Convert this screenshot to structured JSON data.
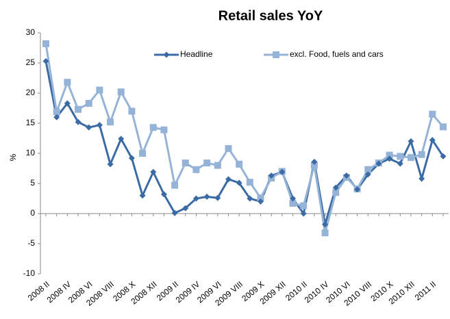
{
  "chart_data": {
    "type": "line",
    "title": "Retail sales YoY",
    "y_label": "%",
    "categories": [
      "2008 II",
      null,
      "2008 IV",
      null,
      "2008 VI",
      null,
      "2008 VIII",
      null,
      "2008 X",
      null,
      "2008 XII",
      null,
      "2009 II",
      null,
      "2009 IV",
      null,
      "2009 VI",
      null,
      "2009 VIII",
      null,
      "2009 X",
      null,
      "2009 XII",
      null,
      "2010 II",
      null,
      "2010 IV",
      null,
      "2010 VI",
      null,
      "2010 VIII",
      null,
      "2010 X",
      null,
      "2010 XII",
      null,
      "2011 II",
      null
    ],
    "series": [
      {
        "name": "Headline",
        "color": "#3b6ba5",
        "marker": "diamond",
        "values": [
          25.3,
          16.0,
          18.3,
          15.2,
          14.3,
          14.7,
          8.2,
          12.4,
          9.2,
          3.0,
          6.9,
          3.2,
          0.1,
          0.9,
          2.5,
          2.8,
          2.6,
          5.7,
          5.1,
          2.5,
          2.0,
          6.3,
          6.9,
          2.5,
          0.0,
          8.6,
          -1.8,
          4.3,
          6.3,
          4.0,
          6.5,
          8.3,
          9.1,
          8.3,
          12.0,
          5.8,
          12.2,
          9.5
        ]
      },
      {
        "name": "excl. Food, fuels and cars",
        "color": "#95b3d7",
        "marker": "square",
        "values": [
          28.2,
          16.9,
          21.8,
          17.3,
          18.3,
          20.5,
          15.2,
          20.2,
          17.0,
          10.0,
          14.3,
          13.9,
          4.7,
          8.4,
          7.3,
          8.4,
          8.0,
          10.8,
          8.2,
          5.2,
          2.6,
          5.9,
          7.0,
          1.7,
          1.3,
          8.0,
          -3.2,
          3.5,
          6.0,
          4.1,
          7.3,
          8.4,
          9.7,
          9.5,
          9.3,
          9.8,
          16.5,
          14.4
        ]
      }
    ],
    "ylim": [
      -10,
      30
    ],
    "yticks": [
      -10,
      -5,
      0,
      5,
      10,
      15,
      20,
      25,
      30
    ],
    "grid": false,
    "legend": "top"
  }
}
